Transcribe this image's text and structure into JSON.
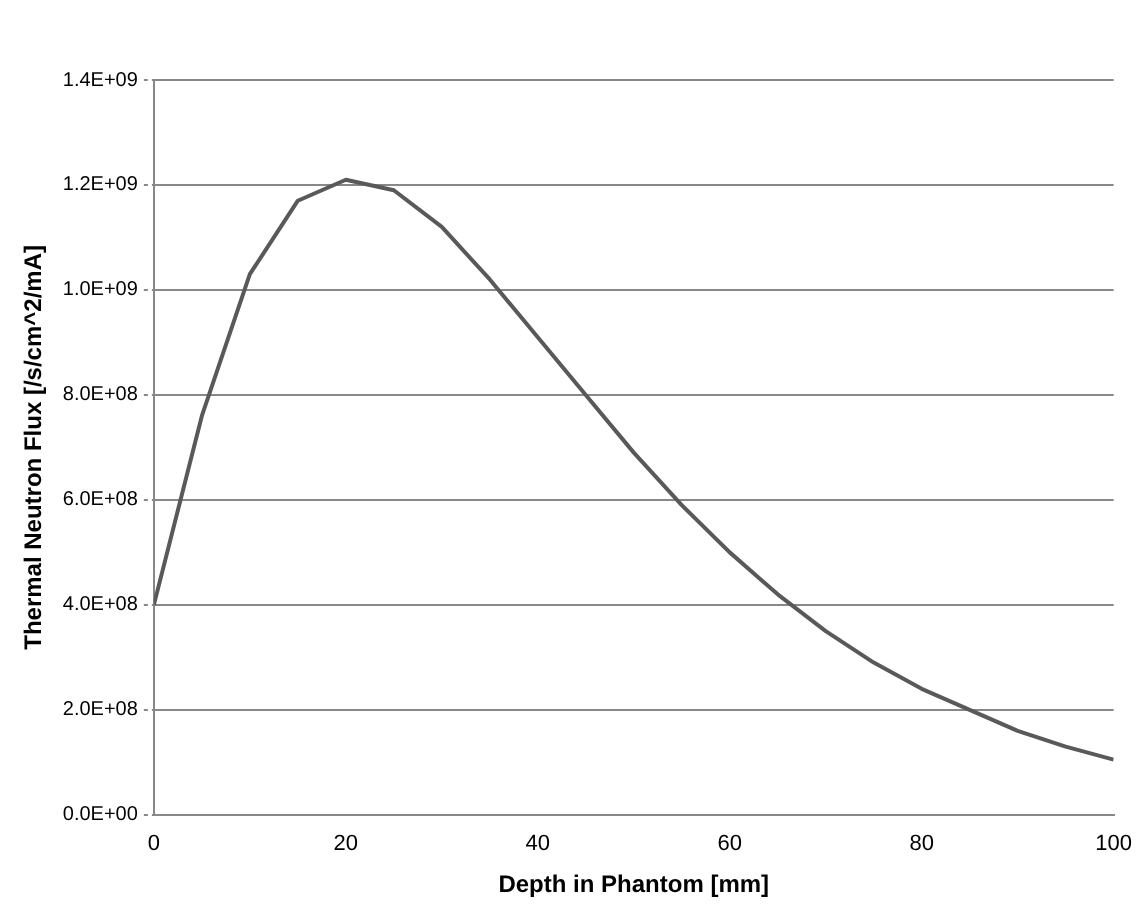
{
  "chart_data": {
    "type": "line",
    "xlabel": "Depth in Phantom [mm]",
    "ylabel": "Thermal Neutron Flux [/s/cm^2/mA]",
    "x": [
      0,
      5,
      10,
      15,
      20,
      25,
      30,
      35,
      40,
      45,
      50,
      55,
      60,
      65,
      70,
      75,
      80,
      85,
      90,
      95,
      100
    ],
    "series": [
      {
        "color": "#595959",
        "values": [
          400000000.0,
          760000000.0,
          1030000000.0,
          1170000000.0,
          1210000000.0,
          1190000000.0,
          1120000000.0,
          1020000000.0,
          910000000.0,
          800000000.0,
          690000000.0,
          590000000.0,
          500000000.0,
          420000000.0,
          350000000.0,
          290000000.0,
          240000000.0,
          200000000.0,
          160000000.0,
          130000000.0,
          105000000.0
        ]
      }
    ],
    "xlim": [
      0,
      100
    ],
    "xticks": [
      0,
      20,
      40,
      60,
      80,
      100
    ],
    "ylim": [
      0,
      1400000000.0
    ],
    "yticks": [
      {
        "value": 0,
        "label": "0.0E+00"
      },
      {
        "value": 200000000.0,
        "label": "2.0E+08"
      },
      {
        "value": 400000000.0,
        "label": "4.0E+08"
      },
      {
        "value": 600000000.0,
        "label": "6.0E+08"
      },
      {
        "value": 800000000.0,
        "label": "8.0E+08"
      },
      {
        "value": 1000000000.0,
        "label": "1.0E+09"
      },
      {
        "value": 1200000000.0,
        "label": "1.2E+09"
      },
      {
        "value": 1400000000.0,
        "label": "1.4E+09"
      }
    ],
    "grid": "y",
    "legend": false,
    "marker": "none",
    "line_style": "solid"
  }
}
